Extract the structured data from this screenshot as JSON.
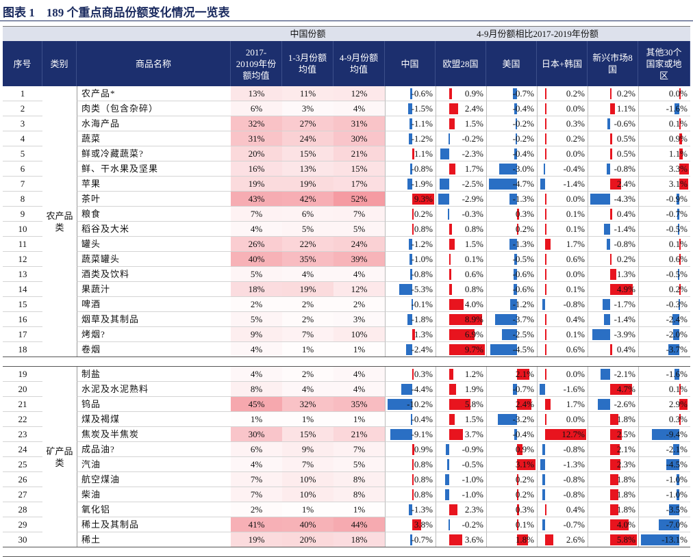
{
  "title": "图表 1　189 个重点商品份额变化情况一览表",
  "header": {
    "group_china": "中国份额",
    "group_change": "4-9月份额相比2017-2019年份额",
    "columns": [
      "序号",
      "类别",
      "商品名称",
      "2017-20109年份额均值",
      "1-3月份额均值",
      "4-9月份额均值",
      "中国",
      "欧盟28国",
      "美国",
      "日本+韩国",
      "新兴市场8国",
      "其他30个国家或地区"
    ]
  },
  "sections": [
    {
      "category": "农产品类",
      "rows": [
        {
          "no": 1,
          "name": "农产品*",
          "shares": [
            "13%",
            "11%",
            "12%"
          ],
          "changes": [
            "-0.6%",
            "0.9%",
            "-0.7%",
            "0.2%",
            "0.2%",
            "0.0%"
          ]
        },
        {
          "no": 2,
          "name": "肉类（包含杂碎）",
          "shares": [
            "6%",
            "3%",
            "4%"
          ],
          "changes": [
            "-1.5%",
            "2.4%",
            "-0.4%",
            "0.0%",
            "1.1%",
            "-1.6%"
          ]
        },
        {
          "no": 3,
          "name": "水海产品",
          "shares": [
            "32%",
            "27%",
            "31%"
          ],
          "changes": [
            "-1.1%",
            "1.5%",
            "-0.2%",
            "0.3%",
            "-0.6%",
            "0.1%"
          ]
        },
        {
          "no": 4,
          "name": "蔬菜",
          "shares": [
            "31%",
            "24%",
            "30%"
          ],
          "changes": [
            "-1.2%",
            "-0.2%",
            "-0.2%",
            "0.2%",
            "0.5%",
            "0.9%"
          ]
        },
        {
          "no": 5,
          "name": "鲜或冷藏蔬菜?",
          "shares": [
            "20%",
            "15%",
            "21%"
          ],
          "changes": [
            "1.1%",
            "-2.3%",
            "-0.4%",
            "0.0%",
            "0.5%",
            "1.1%"
          ]
        },
        {
          "no": 6,
          "name": "鲜、干水果及坚果",
          "shares": [
            "16%",
            "13%",
            "15%"
          ],
          "changes": [
            "-0.8%",
            "1.7%",
            "-3.0%",
            "-0.4%",
            "-0.8%",
            "3.3%"
          ]
        },
        {
          "no": 7,
          "name": "苹果",
          "shares": [
            "19%",
            "19%",
            "17%"
          ],
          "changes": [
            "-1.9%",
            "-2.5%",
            "-4.7%",
            "-1.4%",
            "2.4%",
            "3.1%"
          ]
        },
        {
          "no": 8,
          "name": "茶叶",
          "shares": [
            "43%",
            "42%",
            "52%"
          ],
          "changes": [
            "9.3%",
            "-2.9%",
            "-1.3%",
            "0.0%",
            "-4.3%",
            "-0.9%"
          ]
        },
        {
          "no": 9,
          "name": "粮食",
          "shares": [
            "7%",
            "6%",
            "7%"
          ],
          "changes": [
            "0.2%",
            "-0.3%",
            "0.3%",
            "0.1%",
            "0.4%",
            "-0.7%"
          ]
        },
        {
          "no": 10,
          "name": "稻谷及大米",
          "shares": [
            "4%",
            "5%",
            "5%"
          ],
          "changes": [
            "0.8%",
            "0.8%",
            "0.2%",
            "0.1%",
            "-1.4%",
            "-0.5%"
          ]
        },
        {
          "no": 11,
          "name": "罐头",
          "shares": [
            "26%",
            "22%",
            "24%"
          ],
          "changes": [
            "-1.2%",
            "1.5%",
            "-1.3%",
            "1.7%",
            "-0.8%",
            "0.1%"
          ]
        },
        {
          "no": 12,
          "name": "蔬菜罐头",
          "shares": [
            "40%",
            "35%",
            "39%"
          ],
          "changes": [
            "-1.0%",
            "0.1%",
            "-0.5%",
            "0.6%",
            "0.2%",
            "0.6%"
          ]
        },
        {
          "no": 13,
          "name": "酒类及饮料",
          "shares": [
            "5%",
            "4%",
            "4%"
          ],
          "changes": [
            "-0.8%",
            "0.6%",
            "-0.6%",
            "0.0%",
            "1.3%",
            "-0.5%"
          ]
        },
        {
          "no": 14,
          "name": "果蔬汁",
          "shares": [
            "18%",
            "19%",
            "12%"
          ],
          "changes": [
            "-5.3%",
            "0.8%",
            "-0.6%",
            "0.1%",
            "4.9%",
            "0.2%"
          ]
        },
        {
          "no": 15,
          "name": "啤酒",
          "shares": [
            "2%",
            "2%",
            "2%"
          ],
          "changes": [
            "-0.1%",
            "4.0%",
            "-1.2%",
            "-0.8%",
            "-1.7%",
            "-0.3%"
          ]
        },
        {
          "no": 16,
          "name": "烟草及其制品",
          "shares": [
            "5%",
            "2%",
            "3%"
          ],
          "changes": [
            "-1.8%",
            "8.9%",
            "-3.7%",
            "0.4%",
            "-1.4%",
            "-2.4%"
          ]
        },
        {
          "no": 17,
          "name": "烤烟?",
          "shares": [
            "9%",
            "7%",
            "10%"
          ],
          "changes": [
            "1.3%",
            "6.9%",
            "-2.5%",
            "0.1%",
            "-3.9%",
            "-2.0%"
          ]
        },
        {
          "no": 18,
          "name": "卷烟",
          "shares": [
            "4%",
            "1%",
            "1%"
          ],
          "changes": [
            "-2.4%",
            "9.7%",
            "-4.5%",
            "0.6%",
            "0.4%",
            "-3.7%"
          ]
        }
      ]
    },
    {
      "category": "矿产品类",
      "rows": [
        {
          "no": 19,
          "name": "制盐",
          "shares": [
            "4%",
            "2%",
            "4%"
          ],
          "changes": [
            "0.3%",
            "1.2%",
            "2.1%",
            "0.0%",
            "-2.1%",
            "-1.6%"
          ]
        },
        {
          "no": 20,
          "name": "水泥及水泥熟料",
          "shares": [
            "8%",
            "4%",
            "4%"
          ],
          "changes": [
            "-4.4%",
            "1.9%",
            "-0.7%",
            "-1.6%",
            "4.7%",
            "0.1%"
          ]
        },
        {
          "no": 21,
          "name": "钨品",
          "shares": [
            "45%",
            "32%",
            "35%"
          ],
          "changes": [
            "-10.2%",
            "5.8%",
            "2.4%",
            "1.7%",
            "-2.6%",
            "2.9%"
          ]
        },
        {
          "no": 22,
          "name": "煤及褐煤",
          "shares": [
            "1%",
            "1%",
            "1%"
          ],
          "changes": [
            "-0.4%",
            "1.5%",
            "-3.2%",
            "0.0%",
            "1.8%",
            "0.3%"
          ]
        },
        {
          "no": 23,
          "name": "焦炭及半焦炭",
          "shares": [
            "30%",
            "15%",
            "21%"
          ],
          "changes": [
            "-9.1%",
            "3.7%",
            "-0.4%",
            "12.7%",
            "2.5%",
            "-9.4%"
          ]
        },
        {
          "no": 24,
          "name": "成品油?",
          "shares": [
            "6%",
            "9%",
            "7%"
          ],
          "changes": [
            "0.9%",
            "-0.9%",
            "0.9%",
            "-0.8%",
            "2.1%",
            "-2.1%"
          ]
        },
        {
          "no": 25,
          "name": "汽油",
          "shares": [
            "4%",
            "7%",
            "5%"
          ],
          "changes": [
            "0.8%",
            "-0.5%",
            "3.1%",
            "-1.3%",
            "2.3%",
            "-4.5%"
          ]
        },
        {
          "no": 26,
          "name": "航空煤油",
          "shares": [
            "7%",
            "10%",
            "8%"
          ],
          "changes": [
            "0.8%",
            "-1.0%",
            "0.2%",
            "-0.8%",
            "1.8%",
            "-1.0%"
          ]
        },
        {
          "no": 27,
          "name": "柴油",
          "shares": [
            "7%",
            "10%",
            "8%"
          ],
          "changes": [
            "0.8%",
            "-1.0%",
            "0.2%",
            "-0.8%",
            "1.8%",
            "-1.0%"
          ]
        },
        {
          "no": 28,
          "name": "氧化铝",
          "shares": [
            "2%",
            "1%",
            "1%"
          ],
          "changes": [
            "-1.3%",
            "2.3%",
            "0.3%",
            "0.4%",
            "1.8%",
            "-3.5%"
          ]
        },
        {
          "no": 29,
          "name": "稀土及其制品",
          "shares": [
            "41%",
            "40%",
            "44%"
          ],
          "changes": [
            "3.8%",
            "-0.2%",
            "0.1%",
            "-0.7%",
            "4.0%",
            "-7.0%"
          ]
        },
        {
          "no": 30,
          "name": "稀土",
          "shares": [
            "19%",
            "20%",
            "18%"
          ],
          "changes": [
            "-0.7%",
            "3.6%",
            "1.8%",
            "2.6%",
            "5.8%",
            "-13.1%"
          ]
        }
      ]
    }
  ]
}
